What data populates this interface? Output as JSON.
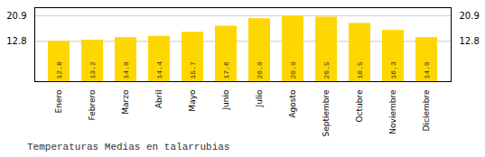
{
  "chart_data": {
    "type": "bar",
    "title": "Temperaturas Medias en talarrubias",
    "categories": [
      "Enero",
      "Febrero",
      "Marzo",
      "Abril",
      "Mayo",
      "Junio",
      "Julio",
      "Agosto",
      "Septiembre",
      "Octubre",
      "Noviembre",
      "Diciembre"
    ],
    "values": [
      12.8,
      13.2,
      14.0,
      14.4,
      15.7,
      17.6,
      20.0,
      20.9,
      20.5,
      18.5,
      16.3,
      14.0
    ],
    "value_labels": [
      "12.8",
      "13.2",
      "14.0",
      "14.4",
      "15.7",
      "17.6",
      "20.0",
      "20.9",
      "20.5",
      "18.5",
      "16.3",
      "14.0"
    ],
    "color": "#FFD700",
    "ylim": [
      0.0,
      23.5
    ],
    "yticks": [
      12.8,
      20.9
    ],
    "grid": true,
    "data_labels": true
  }
}
